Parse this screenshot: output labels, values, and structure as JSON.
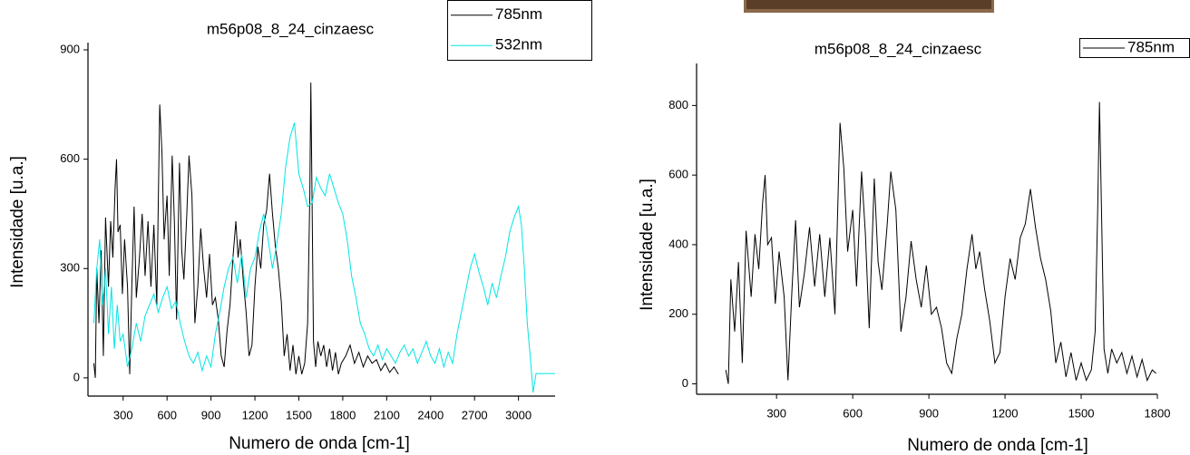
{
  "chart_data": [
    {
      "type": "line",
      "title": "m56p08_8_24_cinzaesc",
      "x_label": "Numero de  onda [cm-1]",
      "y_label": "Intensidade [u.a.]",
      "xlim": [
        60,
        3250
      ],
      "ylim": [
        -50,
        900
      ],
      "xticks": [
        300,
        600,
        900,
        1200,
        1500,
        1800,
        2100,
        2400,
        2700,
        3000
      ],
      "yticks": [
        0,
        300,
        600,
        900
      ],
      "legend": "upper right",
      "series": [
        {
          "name": "785nm",
          "color": "#000000",
          "x": [
            100,
            110,
            120,
            135,
            150,
            165,
            180,
            200,
            215,
            230,
            245,
            255,
            265,
            280,
            295,
            310,
            330,
            345,
            360,
            375,
            390,
            410,
            430,
            450,
            470,
            490,
            510,
            530,
            550,
            565,
            580,
            600,
            615,
            635,
            650,
            665,
            685,
            700,
            715,
            735,
            750,
            770,
            790,
            810,
            830,
            850,
            870,
            890,
            910,
            930,
            950,
            970,
            990,
            1010,
            1030,
            1050,
            1070,
            1085,
            1100,
            1120,
            1140,
            1160,
            1180,
            1200,
            1220,
            1240,
            1260,
            1280,
            1300,
            1320,
            1340,
            1360,
            1380,
            1400,
            1420,
            1440,
            1460,
            1480,
            1500,
            1520,
            1540,
            1560,
            1575,
            1582,
            1590,
            1600,
            1615,
            1630,
            1650,
            1670,
            1690,
            1710,
            1730,
            1750,
            1770,
            1790,
            1820,
            1850,
            1880,
            1910,
            1940,
            1970,
            2000,
            2030,
            2060,
            2090,
            2120,
            2150,
            2180
          ],
          "values": [
            40,
            0,
            300,
            150,
            350,
            60,
            440,
            250,
            430,
            330,
            520,
            600,
            400,
            420,
            230,
            380,
            250,
            10,
            260,
            470,
            220,
            320,
            450,
            280,
            430,
            250,
            420,
            200,
            750,
            620,
            380,
            500,
            280,
            610,
            430,
            160,
            590,
            350,
            270,
            450,
            610,
            500,
            150,
            250,
            410,
            300,
            220,
            340,
            200,
            220,
            160,
            60,
            30,
            130,
            200,
            330,
            430,
            330,
            380,
            270,
            180,
            60,
            90,
            250,
            360,
            300,
            420,
            460,
            560,
            450,
            360,
            300,
            210,
            60,
            120,
            20,
            90,
            10,
            60,
            10,
            40,
            150,
            500,
            810,
            500,
            100,
            30,
            100,
            60,
            90,
            30,
            80,
            20,
            70,
            10,
            40,
            60,
            90,
            40,
            70,
            30,
            60,
            40,
            50,
            20,
            40,
            15,
            30,
            10
          ]
        },
        {
          "name": "532nm",
          "color": "#00e5e5",
          "x": [
            100,
            120,
            140,
            160,
            180,
            200,
            220,
            240,
            260,
            280,
            300,
            330,
            360,
            390,
            420,
            450,
            480,
            510,
            540,
            570,
            600,
            630,
            660,
            690,
            720,
            750,
            780,
            810,
            840,
            870,
            900,
            930,
            960,
            990,
            1020,
            1050,
            1080,
            1110,
            1140,
            1170,
            1200,
            1230,
            1260,
            1290,
            1320,
            1350,
            1380,
            1410,
            1440,
            1470,
            1500,
            1530,
            1560,
            1590,
            1620,
            1650,
            1680,
            1710,
            1740,
            1770,
            1800,
            1830,
            1860,
            1890,
            1920,
            1950,
            1980,
            2010,
            2040,
            2070,
            2100,
            2130,
            2160,
            2190,
            2220,
            2250,
            2280,
            2310,
            2340,
            2370,
            2400,
            2430,
            2460,
            2490,
            2520,
            2550,
            2580,
            2610,
            2640,
            2670,
            2700,
            2730,
            2760,
            2790,
            2820,
            2850,
            2880,
            2910,
            2940,
            2970,
            3000,
            3020,
            3040,
            3060,
            3080,
            3100,
            3120,
            3250
          ],
          "values": [
            150,
            300,
            380,
            200,
            300,
            120,
            250,
            80,
            200,
            100,
            120,
            30,
            80,
            150,
            100,
            170,
            200,
            230,
            180,
            220,
            250,
            190,
            210,
            150,
            100,
            60,
            40,
            70,
            20,
            60,
            30,
            120,
            180,
            250,
            300,
            330,
            260,
            340,
            220,
            300,
            330,
            400,
            450,
            380,
            300,
            370,
            450,
            580,
            660,
            700,
            560,
            520,
            470,
            480,
            550,
            520,
            500,
            560,
            520,
            480,
            450,
            380,
            280,
            220,
            150,
            120,
            80,
            60,
            90,
            50,
            80,
            60,
            40,
            70,
            90,
            60,
            80,
            40,
            70,
            100,
            60,
            40,
            80,
            30,
            70,
            40,
            120,
            180,
            240,
            300,
            340,
            290,
            250,
            200,
            260,
            220,
            280,
            330,
            400,
            440,
            470,
            420,
            300,
            150,
            60,
            -40,
            12,
            12
          ]
        }
      ]
    },
    {
      "type": "line",
      "title": "m56p08_8_24_cinzaesc",
      "x_label": "Numero de onda [cm-1]",
      "y_label": "Intensidade [u.a.]",
      "xlim": [
        -15,
        1800
      ],
      "ylim": [
        -30,
        900
      ],
      "xticks": [
        300,
        600,
        900,
        1200,
        1500,
        1800
      ],
      "yticks": [
        0,
        200,
        400,
        600,
        800
      ],
      "legend": "upper right",
      "series": [
        {
          "name": "785nm",
          "color": "#000000",
          "x": [
            100,
            110,
            120,
            135,
            150,
            165,
            180,
            200,
            215,
            230,
            245,
            255,
            265,
            280,
            295,
            310,
            330,
            345,
            360,
            375,
            390,
            410,
            430,
            450,
            470,
            490,
            510,
            530,
            550,
            565,
            580,
            600,
            615,
            635,
            650,
            665,
            685,
            700,
            715,
            735,
            750,
            770,
            790,
            810,
            830,
            850,
            870,
            890,
            910,
            930,
            950,
            970,
            990,
            1010,
            1030,
            1050,
            1070,
            1085,
            1100,
            1120,
            1140,
            1160,
            1180,
            1200,
            1220,
            1240,
            1260,
            1280,
            1300,
            1320,
            1340,
            1360,
            1380,
            1400,
            1420,
            1440,
            1460,
            1480,
            1500,
            1520,
            1540,
            1555,
            1565,
            1572,
            1580,
            1590,
            1605,
            1620,
            1640,
            1660,
            1680,
            1700,
            1720,
            1740,
            1760,
            1780,
            1795
          ],
          "values": [
            40,
            0,
            300,
            150,
            350,
            60,
            440,
            250,
            430,
            330,
            520,
            600,
            400,
            420,
            230,
            380,
            250,
            10,
            260,
            470,
            220,
            320,
            450,
            280,
            430,
            250,
            420,
            200,
            750,
            620,
            380,
            500,
            280,
            610,
            430,
            160,
            590,
            350,
            270,
            450,
            610,
            500,
            150,
            250,
            410,
            300,
            220,
            340,
            200,
            220,
            160,
            60,
            30,
            130,
            200,
            330,
            430,
            330,
            380,
            270,
            180,
            60,
            90,
            250,
            360,
            300,
            420,
            460,
            560,
            450,
            360,
            300,
            210,
            60,
            120,
            20,
            90,
            10,
            60,
            10,
            40,
            150,
            500,
            810,
            500,
            100,
            30,
            100,
            60,
            90,
            30,
            80,
            20,
            70,
            10,
            40,
            30
          ]
        }
      ]
    }
  ]
}
